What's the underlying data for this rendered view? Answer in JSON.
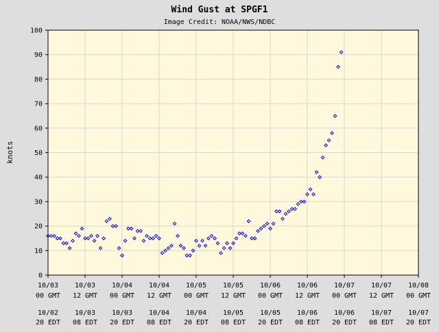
{
  "chart_data": {
    "type": "scatter",
    "title": "Wind Gust at SPGF1",
    "subtitle": "Image Credit: NOAA/NWS/NDBC",
    "ylabel": "knots",
    "xlabel": "",
    "ylim": [
      0,
      100
    ],
    "yticks": [
      0,
      10,
      20,
      30,
      40,
      50,
      60,
      70,
      80,
      90,
      100
    ],
    "xlim_hours_label": "10/03 00 GMT to 10/08 00 GMT",
    "xticks_gmt": [
      {
        "date": "10/03",
        "time": "00 GMT"
      },
      {
        "date": "10/03",
        "time": "12 GMT"
      },
      {
        "date": "10/04",
        "time": "00 GMT"
      },
      {
        "date": "10/04",
        "time": "12 GMT"
      },
      {
        "date": "10/05",
        "time": "00 GMT"
      },
      {
        "date": "10/05",
        "time": "12 GMT"
      },
      {
        "date": "10/06",
        "time": "00 GMT"
      },
      {
        "date": "10/06",
        "time": "12 GMT"
      },
      {
        "date": "10/07",
        "time": "00 GMT"
      },
      {
        "date": "10/07",
        "time": "12 GMT"
      },
      {
        "date": "10/08",
        "time": "00 GMT"
      }
    ],
    "xticks_edt": [
      {
        "date": "10/02",
        "time": "20 EDT"
      },
      {
        "date": "10/03",
        "time": "08 EDT"
      },
      {
        "date": "10/03",
        "time": "20 EDT"
      },
      {
        "date": "10/04",
        "time": "08 EDT"
      },
      {
        "date": "10/04",
        "time": "20 EDT"
      },
      {
        "date": "10/05",
        "time": "08 EDT"
      },
      {
        "date": "10/05",
        "time": "20 EDT"
      },
      {
        "date": "10/06",
        "time": "08 EDT"
      },
      {
        "date": "10/06",
        "time": "20 EDT"
      },
      {
        "date": "10/07",
        "time": "08 EDT"
      },
      {
        "date": "10/07",
        "time": "20 EDT"
      }
    ],
    "grid": true,
    "marker": "diamond",
    "marker_color": "#0000ff",
    "plot_background": "#fff8dc",
    "page_background": "#dedede",
    "points": [
      {
        "x": "10/03 00:00 GMT",
        "y": 16
      },
      {
        "x": "10/03 01:00 GMT",
        "y": 16
      },
      {
        "x": "10/03 02:00 GMT",
        "y": 16
      },
      {
        "x": "10/03 03:00 GMT",
        "y": 15
      },
      {
        "x": "10/03 04:00 GMT",
        "y": 15
      },
      {
        "x": "10/03 05:00 GMT",
        "y": 13
      },
      {
        "x": "10/03 06:00 GMT",
        "y": 13
      },
      {
        "x": "10/03 07:00 GMT",
        "y": 11
      },
      {
        "x": "10/03 08:00 GMT",
        "y": 14
      },
      {
        "x": "10/03 09:00 GMT",
        "y": 17
      },
      {
        "x": "10/03 10:00 GMT",
        "y": 16
      },
      {
        "x": "10/03 11:00 GMT",
        "y": 19
      },
      {
        "x": "10/03 12:00 GMT",
        "y": 15
      },
      {
        "x": "10/03 13:00 GMT",
        "y": 15
      },
      {
        "x": "10/03 14:00 GMT",
        "y": 16
      },
      {
        "x": "10/03 15:00 GMT",
        "y": 14
      },
      {
        "x": "10/03 16:00 GMT",
        "y": 16
      },
      {
        "x": "10/03 17:00 GMT",
        "y": 11
      },
      {
        "x": "10/03 18:00 GMT",
        "y": 15
      },
      {
        "x": "10/03 19:00 GMT",
        "y": 22
      },
      {
        "x": "10/03 20:00 GMT",
        "y": 23
      },
      {
        "x": "10/03 21:00 GMT",
        "y": 20
      },
      {
        "x": "10/03 22:00 GMT",
        "y": 20
      },
      {
        "x": "10/03 23:00 GMT",
        "y": 11
      },
      {
        "x": "10/04 00:00 GMT",
        "y": 8
      },
      {
        "x": "10/04 01:00 GMT",
        "y": 14
      },
      {
        "x": "10/04 02:00 GMT",
        "y": 19
      },
      {
        "x": "10/04 03:00 GMT",
        "y": 19
      },
      {
        "x": "10/04 04:00 GMT",
        "y": 15
      },
      {
        "x": "10/04 05:00 GMT",
        "y": 18
      },
      {
        "x": "10/04 06:00 GMT",
        "y": 18
      },
      {
        "x": "10/04 07:00 GMT",
        "y": 14
      },
      {
        "x": "10/04 08:00 GMT",
        "y": 16
      },
      {
        "x": "10/04 09:00 GMT",
        "y": 15
      },
      {
        "x": "10/04 10:00 GMT",
        "y": 15
      },
      {
        "x": "10/04 11:00 GMT",
        "y": 16
      },
      {
        "x": "10/04 12:00 GMT",
        "y": 15
      },
      {
        "x": "10/04 13:00 GMT",
        "y": 9
      },
      {
        "x": "10/04 14:00 GMT",
        "y": 10
      },
      {
        "x": "10/04 15:00 GMT",
        "y": 11
      },
      {
        "x": "10/04 16:00 GMT",
        "y": 12
      },
      {
        "x": "10/04 17:00 GMT",
        "y": 21
      },
      {
        "x": "10/04 18:00 GMT",
        "y": 16
      },
      {
        "x": "10/04 19:00 GMT",
        "y": 12
      },
      {
        "x": "10/04 20:00 GMT",
        "y": 11
      },
      {
        "x": "10/04 21:00 GMT",
        "y": 8
      },
      {
        "x": "10/04 22:00 GMT",
        "y": 8
      },
      {
        "x": "10/04 23:00 GMT",
        "y": 10
      },
      {
        "x": "10/05 00:00 GMT",
        "y": 14
      },
      {
        "x": "10/05 01:00 GMT",
        "y": 12
      },
      {
        "x": "10/05 02:00 GMT",
        "y": 14
      },
      {
        "x": "10/05 03:00 GMT",
        "y": 12
      },
      {
        "x": "10/05 04:00 GMT",
        "y": 15
      },
      {
        "x": "10/05 05:00 GMT",
        "y": 16
      },
      {
        "x": "10/05 06:00 GMT",
        "y": 15
      },
      {
        "x": "10/05 07:00 GMT",
        "y": 13
      },
      {
        "x": "10/05 08:00 GMT",
        "y": 9
      },
      {
        "x": "10/05 09:00 GMT",
        "y": 11
      },
      {
        "x": "10/05 10:00 GMT",
        "y": 13
      },
      {
        "x": "10/05 11:00 GMT",
        "y": 11
      },
      {
        "x": "10/05 12:00 GMT",
        "y": 13
      },
      {
        "x": "10/05 13:00 GMT",
        "y": 15
      },
      {
        "x": "10/05 14:00 GMT",
        "y": 17
      },
      {
        "x": "10/05 15:00 GMT",
        "y": 17
      },
      {
        "x": "10/05 16:00 GMT",
        "y": 16
      },
      {
        "x": "10/05 17:00 GMT",
        "y": 22
      },
      {
        "x": "10/05 18:00 GMT",
        "y": 15
      },
      {
        "x": "10/05 19:00 GMT",
        "y": 15
      },
      {
        "x": "10/05 20:00 GMT",
        "y": 18
      },
      {
        "x": "10/05 21:00 GMT",
        "y": 19
      },
      {
        "x": "10/05 22:00 GMT",
        "y": 20
      },
      {
        "x": "10/05 23:00 GMT",
        "y": 21
      },
      {
        "x": "10/06 00:00 GMT",
        "y": 19
      },
      {
        "x": "10/06 01:00 GMT",
        "y": 21
      },
      {
        "x": "10/06 02:00 GMT",
        "y": 26
      },
      {
        "x": "10/06 03:00 GMT",
        "y": 26
      },
      {
        "x": "10/06 04:00 GMT",
        "y": 23
      },
      {
        "x": "10/06 05:00 GMT",
        "y": 25
      },
      {
        "x": "10/06 06:00 GMT",
        "y": 26
      },
      {
        "x": "10/06 07:00 GMT",
        "y": 27
      },
      {
        "x": "10/06 08:00 GMT",
        "y": 27
      },
      {
        "x": "10/06 09:00 GMT",
        "y": 29
      },
      {
        "x": "10/06 10:00 GMT",
        "y": 30
      },
      {
        "x": "10/06 11:00 GMT",
        "y": 30
      },
      {
        "x": "10/06 12:00 GMT",
        "y": 33
      },
      {
        "x": "10/06 13:00 GMT",
        "y": 35
      },
      {
        "x": "10/06 14:00 GMT",
        "y": 33
      },
      {
        "x": "10/06 15:00 GMT",
        "y": 42
      },
      {
        "x": "10/06 16:00 GMT",
        "y": 40
      },
      {
        "x": "10/06 17:00 GMT",
        "y": 48
      },
      {
        "x": "10/06 18:00 GMT",
        "y": 53
      },
      {
        "x": "10/06 19:00 GMT",
        "y": 55
      },
      {
        "x": "10/06 20:00 GMT",
        "y": 58
      },
      {
        "x": "10/06 21:00 GMT",
        "y": 65
      },
      {
        "x": "10/06 22:00 GMT",
        "y": 85
      },
      {
        "x": "10/06 23:00 GMT",
        "y": 91
      }
    ]
  }
}
